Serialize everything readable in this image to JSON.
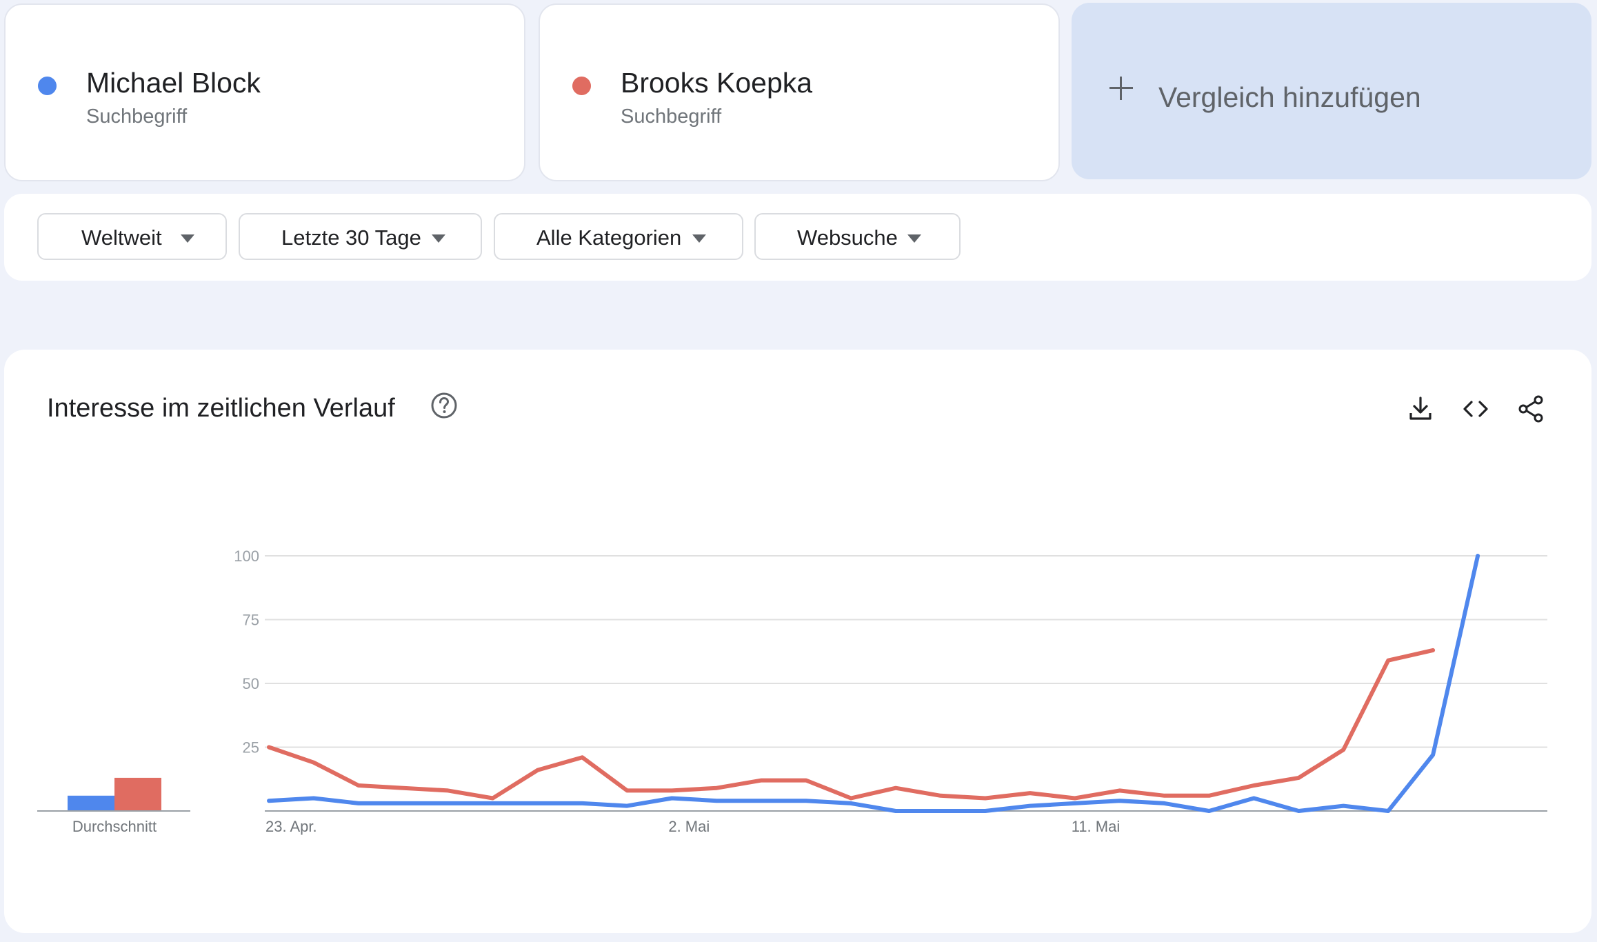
{
  "compare": {
    "terms": [
      {
        "name": "Michael Block",
        "type": "Suchbegriff",
        "color": "#4f87ed"
      },
      {
        "name": "Brooks Koepka",
        "type": "Suchbegriff",
        "color": "#e06c61"
      }
    ],
    "add_label": "Vergleich hinzufügen",
    "add_icon": "plus-icon"
  },
  "filters": [
    {
      "label": "Weltweit"
    },
    {
      "label": "Letzte 30 Tage"
    },
    {
      "label": "Alle Kategorien"
    },
    {
      "label": "Websuche"
    }
  ],
  "panel": {
    "title": "Interesse im zeitlichen Verlauf",
    "help_icon": "help-circle-icon",
    "toolbar_icons": [
      "download-icon",
      "embed-code-icon",
      "share-icon"
    ]
  },
  "chart_data": {
    "type": "line",
    "title": "",
    "xlabel": "",
    "ylabel": "",
    "ylim": [
      0,
      100
    ],
    "yticks": [
      25,
      50,
      75,
      100
    ],
    "grid": true,
    "x": [
      "2023-04-23",
      "2023-04-24",
      "2023-04-25",
      "2023-04-26",
      "2023-04-27",
      "2023-04-28",
      "2023-04-29",
      "2023-04-30",
      "2023-05-01",
      "2023-05-02",
      "2023-05-03",
      "2023-05-04",
      "2023-05-05",
      "2023-05-06",
      "2023-05-07",
      "2023-05-08",
      "2023-05-09",
      "2023-05-10",
      "2023-05-11",
      "2023-05-12",
      "2023-05-13",
      "2023-05-14",
      "2023-05-15",
      "2023-05-16",
      "2023-05-17",
      "2023-05-18",
      "2023-05-19",
      "2023-05-20",
      "2023-05-21"
    ],
    "xtick_labels": [
      {
        "index": 0,
        "label": "23. Apr."
      },
      {
        "index": 9,
        "label": "2. Mai"
      },
      {
        "index": 18,
        "label": "11. Mai"
      }
    ],
    "series": [
      {
        "name": "Michael Block",
        "color": "#4f87ed",
        "values": [
          4,
          5,
          3,
          3,
          3,
          3,
          3,
          3,
          2,
          5,
          4,
          4,
          4,
          3,
          0,
          0,
          0,
          2,
          3,
          4,
          3,
          0,
          5,
          0,
          2,
          0,
          22,
          100,
          null
        ]
      },
      {
        "name": "Brooks Koepka",
        "color": "#e06c61",
        "values": [
          25,
          19,
          10,
          9,
          8,
          5,
          16,
          21,
          8,
          8,
          9,
          12,
          12,
          5,
          9,
          6,
          5,
          7,
          5,
          8,
          6,
          6,
          10,
          13,
          24,
          59,
          63,
          null,
          null
        ]
      }
    ],
    "average": {
      "label": "Durchschnitt",
      "values": [
        {
          "name": "Michael Block",
          "value": 6
        },
        {
          "name": "Brooks Koepka",
          "value": 13
        }
      ]
    }
  }
}
